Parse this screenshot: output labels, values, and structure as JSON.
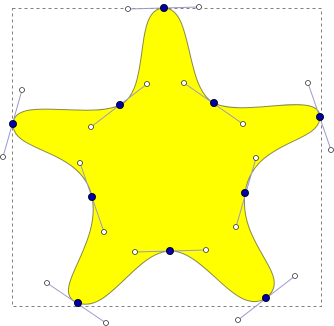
{
  "editor": {
    "tool": "node-tool",
    "selected_object": "star-path"
  },
  "star": {
    "fill_color": "#ffff00",
    "stroke_color": "#8a8a4a",
    "node_count": 10,
    "node_type": "smooth"
  },
  "nodes": [
    {
      "id": "node-top-tip",
      "type": "smooth"
    },
    {
      "id": "node-upper-right-valley",
      "type": "smooth"
    },
    {
      "id": "node-right-tip",
      "type": "smooth"
    },
    {
      "id": "node-lower-right-valley",
      "type": "smooth"
    },
    {
      "id": "node-bottom-right-tip",
      "type": "smooth"
    },
    {
      "id": "node-bottom-valley",
      "type": "smooth"
    },
    {
      "id": "node-bottom-left-tip",
      "type": "smooth"
    },
    {
      "id": "node-lower-left-valley",
      "type": "smooth"
    },
    {
      "id": "node-left-tip",
      "type": "smooth"
    },
    {
      "id": "node-upper-left-valley",
      "type": "smooth"
    }
  ],
  "colors": {
    "bounding_box": "#808080",
    "node_fill": "#0000aa",
    "node_stroke": "#000000",
    "handle_line": "#9999cc",
    "handle_fill": "#ffffff",
    "handle_stroke": "#333333"
  }
}
